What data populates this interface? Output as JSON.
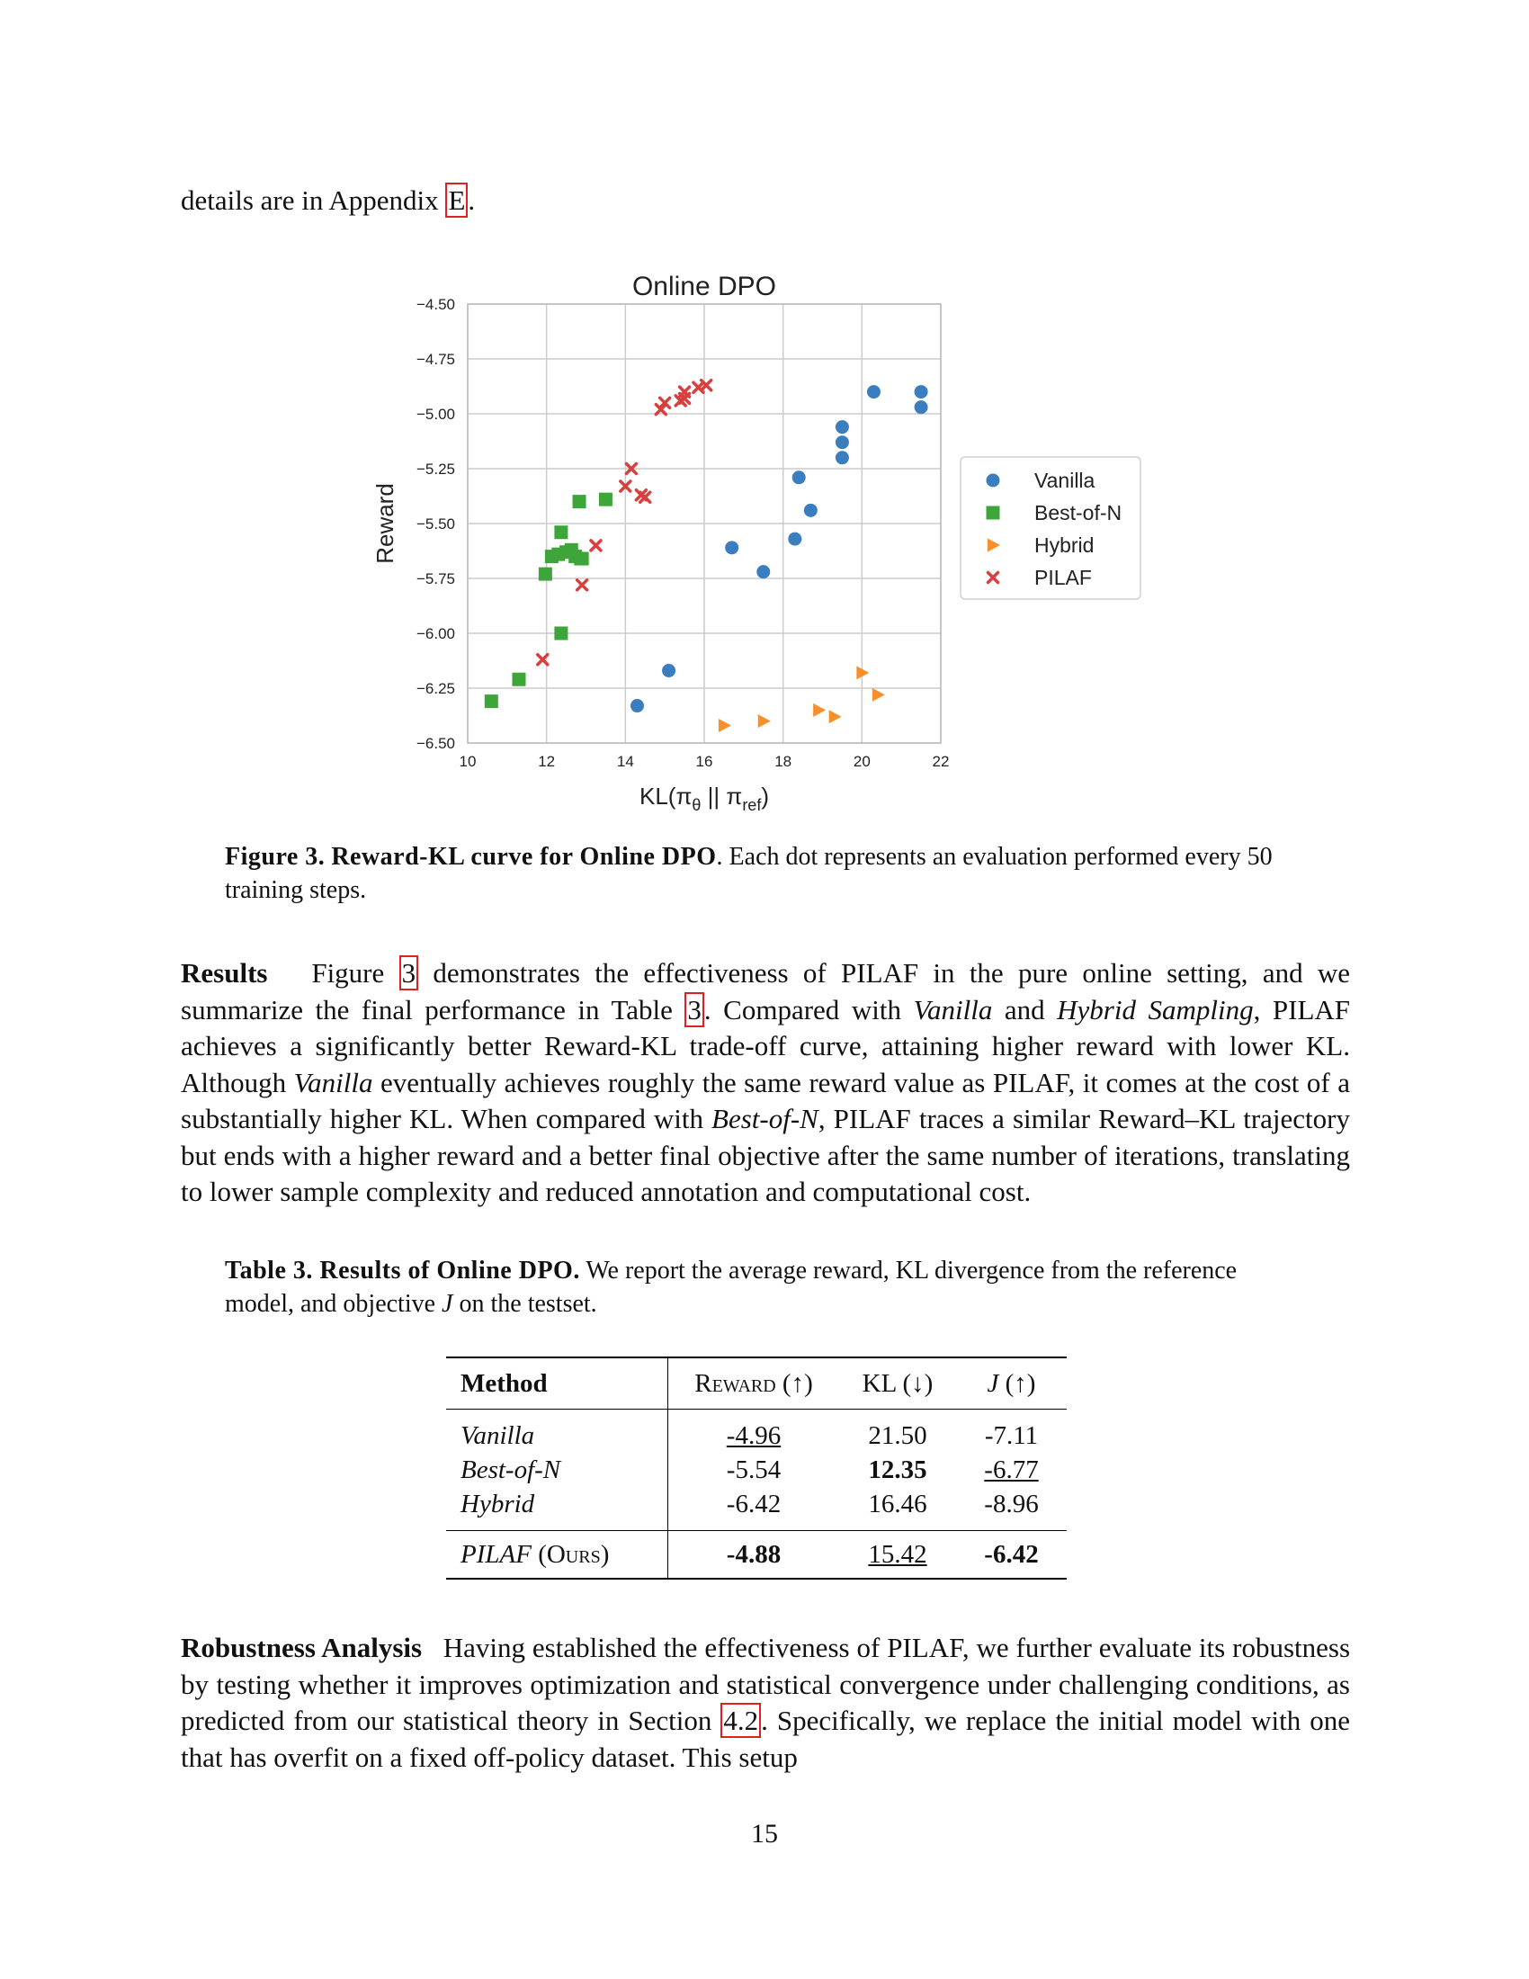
{
  "intro_line": {
    "text": "details are in Appendix ",
    "ref": "E",
    "end": "."
  },
  "chart_data": {
    "type": "scatter",
    "title": "Online DPO",
    "xlabel": "KL(π_θ || π_ref)",
    "ylabel": "Reward",
    "xlim": [
      10,
      22
    ],
    "ylim": [
      -6.5,
      -4.5
    ],
    "xticks": [
      10,
      12,
      14,
      16,
      18,
      20,
      22
    ],
    "yticks": [
      -4.5,
      -4.75,
      -5.0,
      -5.25,
      -5.5,
      -5.75,
      -6.0,
      -6.25,
      -6.5
    ],
    "ytick_labels": [
      "−4.50",
      "−4.75",
      "−5.00",
      "−5.25",
      "−5.50",
      "−5.75",
      "−6.00",
      "−6.25",
      "−6.50"
    ],
    "grid": true,
    "legend_position": "right",
    "series": [
      {
        "name": "Vanilla",
        "marker": "circle",
        "color": "#3a7ebf",
        "x": [
          14.3,
          15.1,
          16.7,
          17.5,
          18.3,
          18.4,
          18.7,
          19.5,
          19.5,
          19.5,
          20.3,
          21.5,
          21.5
        ],
        "y": [
          -6.33,
          -6.17,
          -5.61,
          -5.72,
          -5.57,
          -5.29,
          -5.44,
          -5.06,
          -5.13,
          -5.2,
          -4.9,
          -4.9,
          -4.97
        ]
      },
      {
        "name": "Best-of-N",
        "marker": "square",
        "color": "#3ea53a",
        "x": [
          10.6,
          11.3,
          11.97,
          12.13,
          12.3,
          12.37,
          12.37,
          12.5,
          12.63,
          12.73,
          12.83,
          12.87,
          12.9,
          13.5
        ],
        "y": [
          -6.31,
          -6.21,
          -5.73,
          -5.65,
          -5.64,
          -5.54,
          -6.0,
          -5.63,
          -5.62,
          -5.65,
          -5.4,
          -5.66,
          -5.66,
          -5.39
        ]
      },
      {
        "name": "Hybrid",
        "marker": "triangle-right",
        "color": "#f7902a",
        "x": [
          16.5,
          17.5,
          18.9,
          19.3,
          20.0,
          20.4
        ],
        "y": [
          -6.42,
          -6.4,
          -6.35,
          -6.38,
          -6.18,
          -6.28
        ]
      },
      {
        "name": "PILAF",
        "marker": "x",
        "color": "#d84040",
        "x": [
          11.9,
          12.9,
          13.25,
          14.0,
          14.15,
          14.4,
          14.5,
          14.9,
          15.0,
          15.4,
          15.5,
          15.5,
          15.85,
          16.05
        ],
        "y": [
          -6.12,
          -5.78,
          -5.6,
          -5.33,
          -5.25,
          -5.37,
          -5.38,
          -4.98,
          -4.95,
          -4.94,
          -4.93,
          -4.9,
          -4.88,
          -4.87
        ]
      }
    ]
  },
  "figure_caption": {
    "label": "Figure 3.",
    "bold_title": "Reward-KL curve for Online DPO",
    "text": ". Each dot represents an evaluation performed every 50 training steps."
  },
  "results_para": {
    "heading": "Results",
    "t1": "Figure ",
    "ref1": "3",
    "t2": " demonstrates the effectiveness of PILAF in the pure online setting, and we summarize the final performance in Table ",
    "ref2": "3",
    "t3": ". Compared with ",
    "i1": "Vanilla",
    "t4": " and ",
    "i2": "Hybrid Sampling",
    "t5": ", PILAF achieves a significantly better Reward-KL trade-off curve, attaining higher reward with lower KL. Although ",
    "i3": "Vanilla",
    "t6": " eventually achieves roughly the same reward value as PILAF, it comes at the cost of a substantially higher KL. When compared with ",
    "i4": "Best-of-N",
    "t7": ", PILAF traces a similar Reward–KL trajectory but ends with a higher reward and a better final objective after the same number of iterations, translating to lower sample complexity and reduced annotation and computational cost."
  },
  "table_caption": {
    "label": "Table 3. Results of Online DPO.",
    "t1": " We report the average reward, KL divergence from the reference model, and objective ",
    "j": "J",
    "t2": " on the testset."
  },
  "table": {
    "headers": {
      "method": "Method",
      "reward": "Reward (↑)",
      "kl": "KL (↓)",
      "j_name": "J",
      "j_arrow": " (↑)"
    },
    "rows": [
      {
        "method": "Vanilla",
        "reward": "-4.96",
        "kl": "21.50",
        "j": "-7.11"
      },
      {
        "method": "Best-of-N",
        "reward": "-5.54",
        "kl": "12.35",
        "j": "-6.77"
      },
      {
        "method": "Hybrid",
        "reward": "-6.42",
        "kl": "16.46",
        "j": "-8.96"
      }
    ],
    "ours": {
      "method": "PILAF",
      "suffix": "(Ours)",
      "reward": "-4.88",
      "kl": "15.42",
      "j": "-6.42"
    }
  },
  "robust_para": {
    "heading": "Robustness Analysis",
    "t1": "Having established the effectiveness of PILAF, we further evaluate its robustness by testing whether it improves optimization and statistical convergence under challenging conditions, as predicted from our statistical theory in Section ",
    "ref": "4.2",
    "t2": ". Specifically, we replace the initial model with one that has overfit on a fixed off-policy dataset. This setup"
  },
  "page_number": "15"
}
